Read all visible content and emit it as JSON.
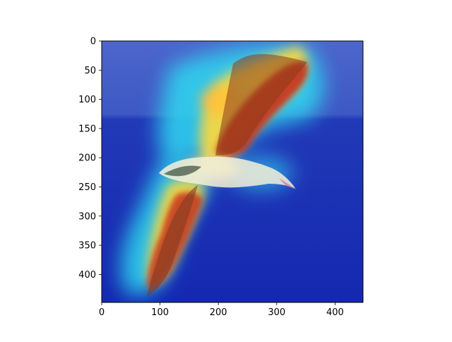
{
  "figure": {
    "description_free": true,
    "x_ticks": [
      "0",
      "100",
      "200",
      "300",
      "400"
    ],
    "y_ticks": [
      "0",
      "50",
      "100",
      "150",
      "200",
      "250",
      "300",
      "350",
      "400"
    ],
    "x_tick_values": [
      0,
      100,
      200,
      300,
      400
    ],
    "y_tick_values": [
      0,
      50,
      100,
      150,
      200,
      250,
      300,
      350,
      400
    ],
    "x_range": [
      0,
      448
    ],
    "y_range": [
      0,
      448
    ],
    "image_subject": "albatross-in-flight-over-ocean-with-attention-heatmap",
    "colormap": "jet",
    "colors": {
      "sky": "#4a63c9",
      "ocean": "#1b2fb8",
      "heat_low": "#00e5ff",
      "heat_mid": "#ffe14a",
      "heat_high": "#c0251a"
    }
  }
}
